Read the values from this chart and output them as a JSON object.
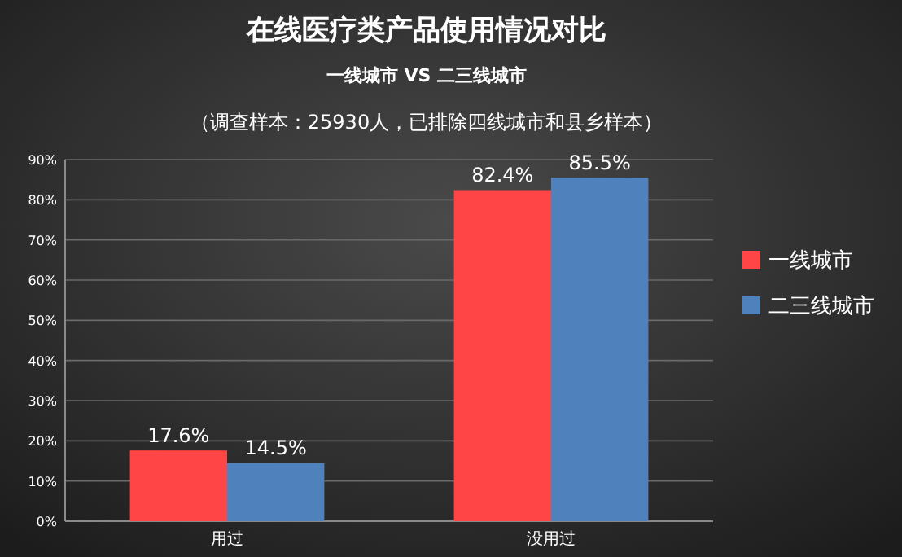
{
  "chart_data": {
    "type": "bar",
    "title": "在线医疗类产品使用情况对比",
    "subtitle": "一线城市 VS 二三线城市",
    "annotations": [
      "（调查样本：25930人，已排除四线城市和县乡样本）"
    ],
    "categories": [
      "用过",
      "没用过"
    ],
    "series": [
      {
        "name": "一线城市",
        "color": "#ff4545",
        "values": [
          17.6,
          82.4
        ],
        "value_labels": [
          "17.6%",
          "82.4%"
        ]
      },
      {
        "name": "二三线城市",
        "color": "#4f81bd",
        "values": [
          14.5,
          85.5
        ],
        "value_labels": [
          "14.5%",
          "85.5%"
        ]
      }
    ],
    "ylim": [
      0,
      90
    ],
    "yticks": [
      {
        "value": 0,
        "label": "0%"
      },
      {
        "value": 10,
        "label": "10%"
      },
      {
        "value": 20,
        "label": "20%"
      },
      {
        "value": 30,
        "label": "30%"
      },
      {
        "value": 40,
        "label": "40%"
      },
      {
        "value": 50,
        "label": "50%"
      },
      {
        "value": 60,
        "label": "60%"
      },
      {
        "value": 70,
        "label": "70%"
      },
      {
        "value": 80,
        "label": "80%"
      },
      {
        "value": 90,
        "label": "90%"
      }
    ],
    "grid": "y",
    "legend": "right"
  }
}
